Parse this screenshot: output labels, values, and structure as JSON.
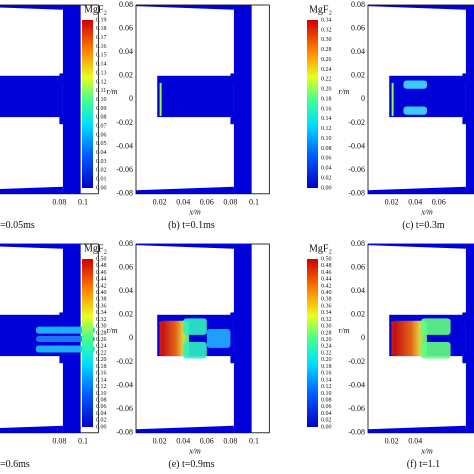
{
  "panels": [
    {
      "caption": "=0.05ms",
      "xticks": [
        "0.08",
        "0.1"
      ],
      "yticks": [],
      "colorbar": {
        "label": "MgF₂",
        "ticks": [
          "0.19",
          "0.18",
          "0.17",
          "0.16",
          "0.15",
          "0.14",
          "0.13",
          "0.12",
          "0.11",
          "0.10",
          "0.09",
          "0.08",
          "0.07",
          "0.06",
          "0.05",
          "0.04",
          "0.03",
          "0.02",
          "0.01",
          "0.00"
        ]
      }
    },
    {
      "caption": "(b) t=0.1ms",
      "xticks": [
        "0.02",
        "0.04",
        "0.06",
        "0.08",
        "0.1"
      ],
      "ylabel": "r/m",
      "xlabel": "x/m",
      "yticks": [
        "0.08",
        "0.06",
        "0.04",
        "0.02",
        "0",
        "-0.02",
        "-0.04",
        "-0.06",
        "-0.08"
      ],
      "colorbar": {
        "label": "MgF₂",
        "ticks": [
          "0.34",
          "0.32",
          "0.30",
          "0.28",
          "0.26",
          "0.24",
          "0.22",
          "0.20",
          "0.18",
          "0.16",
          "0.14",
          "0.12",
          "0.10",
          "0.08",
          "0.06",
          "0.04",
          "0.02",
          "0.00"
        ]
      }
    },
    {
      "caption": "(c) t=0.3m",
      "xticks": [
        "0.02",
        "0.04",
        "0.06"
      ],
      "ylabel": "r/m",
      "xlabel": "x/m",
      "yticks": [
        "0.08",
        "0.06",
        "0.04",
        "0.02",
        "0",
        "-0.02",
        "-0.04",
        "-0.06",
        "-0.08"
      ]
    },
    {
      "caption": "=0.6ms",
      "xticks": [
        "0.08",
        "0.1"
      ],
      "yticks": [],
      "colorbar": {
        "label": "MgF₂",
        "ticks": [
          "0.50",
          "0.48",
          "0.46",
          "0.44",
          "0.42",
          "0.40",
          "0.38",
          "0.36",
          "0.34",
          "0.32",
          "0.30",
          "0.28",
          "0.26",
          "0.24",
          "0.22",
          "0.20",
          "0.18",
          "0.16",
          "0.14",
          "0.12",
          "0.10",
          "0.08",
          "0.06",
          "0.04",
          "0.02",
          "0.00"
        ]
      }
    },
    {
      "caption": "(e) t=0.9ms",
      "xticks": [
        "0.02",
        "0.04",
        "0.06",
        "0.08",
        "0.1"
      ],
      "ylabel": "r/m",
      "xlabel": "x/m",
      "yticks": [
        "0.08",
        "0.06",
        "0.04",
        "0.02",
        "0",
        "-0.02",
        "-0.04",
        "-0.06",
        "-0.08"
      ],
      "colorbar": {
        "label": "MgF₂",
        "ticks": [
          "0.50",
          "0.48",
          "0.46",
          "0.44",
          "0.42",
          "0.40",
          "0.38",
          "0.36",
          "0.34",
          "0.32",
          "0.30",
          "0.28",
          "0.26",
          "0.24",
          "0.22",
          "0.20",
          "0.18",
          "0.16",
          "0.14",
          "0.12",
          "0.10",
          "0.08",
          "0.06",
          "0.04",
          "0.02",
          "0.00"
        ]
      }
    },
    {
      "caption": "(f) t=1.1",
      "xticks": [
        "0.02",
        "0.04"
      ],
      "ylabel": "r/m",
      "xlabel": "x/m",
      "yticks": [
        "0.08",
        "0.06",
        "0.04",
        "0.02",
        "0",
        "-0.02",
        "-0.04",
        "-0.06",
        "-0.08"
      ]
    }
  ]
}
